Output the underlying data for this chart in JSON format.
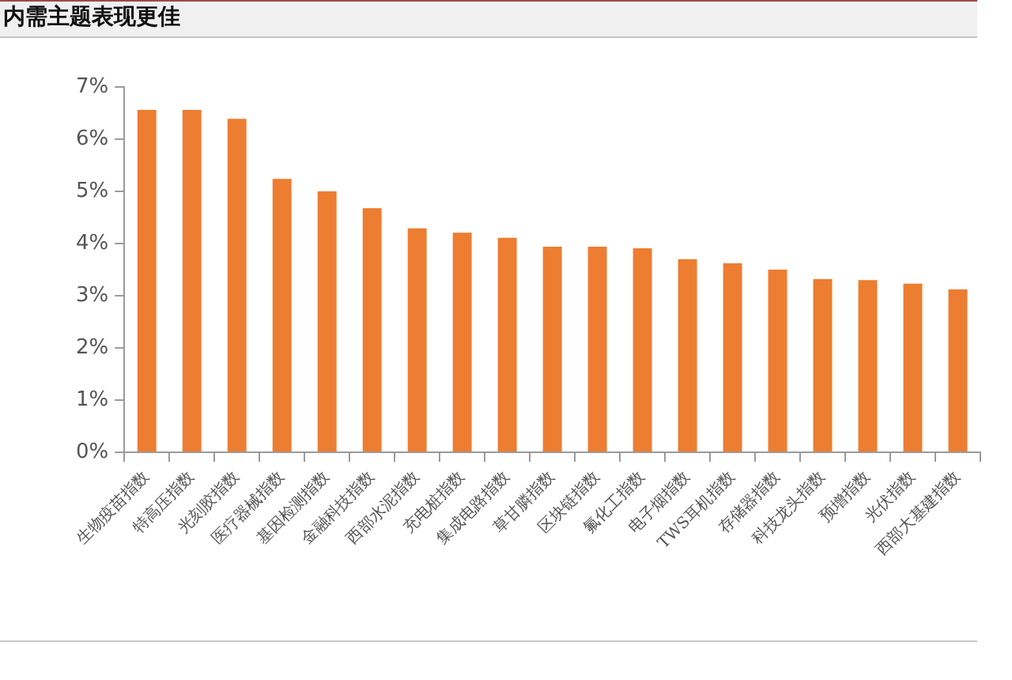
{
  "chart_data": {
    "type": "bar",
    "title": "内需主题表现更佳",
    "categories": [
      "生物疫苗指数",
      "特高压指数",
      "光刻胶指数",
      "医疗器械指数",
      "基因检测指数",
      "金融科技指数",
      "西部水泥指数",
      "充电桩指数",
      "集成电路指数",
      "草甘膦指数",
      "区块链指数",
      "氟化工指数",
      "电子烟指数",
      "TWS耳机指数",
      "存储器指数",
      "科技龙头指数",
      "预增指数",
      "光伏指数",
      "西部大基建指数"
    ],
    "values": [
      6.56,
      6.56,
      6.39,
      5.24,
      5.0,
      4.68,
      4.29,
      4.21,
      4.11,
      3.94,
      3.94,
      3.91,
      3.7,
      3.62,
      3.5,
      3.32,
      3.3,
      3.23,
      3.12
    ],
    "color": "#ed7d31",
    "ylim": [
      0,
      7
    ],
    "yticks": [
      {
        "value": 0,
        "label": "0%"
      },
      {
        "value": 1,
        "label": "1%"
      },
      {
        "value": 2,
        "label": "2%"
      },
      {
        "value": 3,
        "label": "3%"
      },
      {
        "value": 4,
        "label": "4%"
      },
      {
        "value": 5,
        "label": "5%"
      },
      {
        "value": 6,
        "label": "6%"
      },
      {
        "value": 7,
        "label": "7%"
      }
    ]
  }
}
